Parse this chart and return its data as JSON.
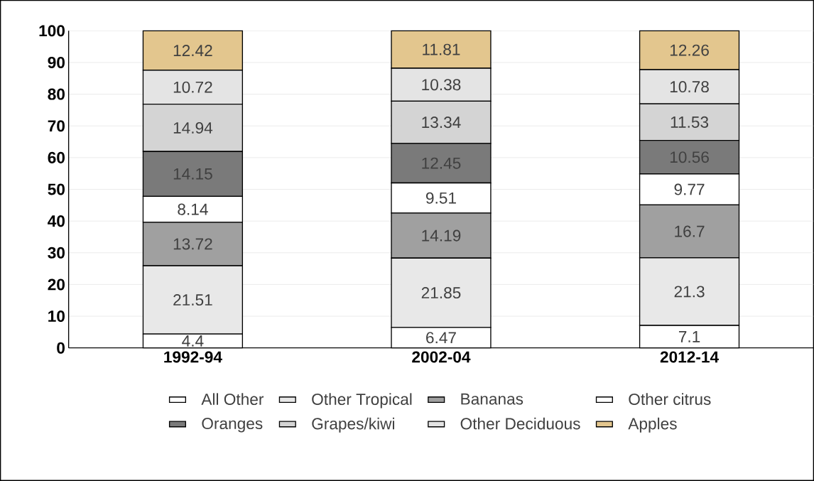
{
  "chart_data": {
    "type": "bar",
    "stacked": true,
    "categories": [
      "1992-94",
      "2002-04",
      "2012-14"
    ],
    "ylim": [
      0,
      100
    ],
    "yticks": [
      0,
      10,
      20,
      30,
      40,
      50,
      60,
      70,
      80,
      90,
      100
    ],
    "grid": "y",
    "legend": "bottom",
    "data_labels": true,
    "series": [
      {
        "name": "All Other",
        "color": "#ffffff",
        "values": [
          4.4,
          6.47,
          7.1
        ]
      },
      {
        "name": "Other Tropical",
        "color": "#e8e8e8",
        "values": [
          21.51,
          21.85,
          21.3
        ]
      },
      {
        "name": "Bananas",
        "color": "#a0a0a0",
        "values": [
          13.72,
          14.19,
          16.7
        ]
      },
      {
        "name": "Other citrus",
        "color": "#ffffff",
        "values": [
          8.14,
          9.51,
          9.77
        ]
      },
      {
        "name": "Oranges",
        "color": "#7a7a7a",
        "values": [
          14.15,
          12.45,
          10.56
        ]
      },
      {
        "name": "Grapes/kiwi",
        "color": "#d4d4d4",
        "values": [
          14.94,
          13.34,
          11.53
        ]
      },
      {
        "name": "Other Deciduous",
        "color": "#e4e4e4",
        "values": [
          10.72,
          10.38,
          10.78
        ]
      },
      {
        "name": "Apples",
        "color": "#e3c68e",
        "values": [
          12.42,
          11.81,
          12.26
        ]
      }
    ]
  }
}
